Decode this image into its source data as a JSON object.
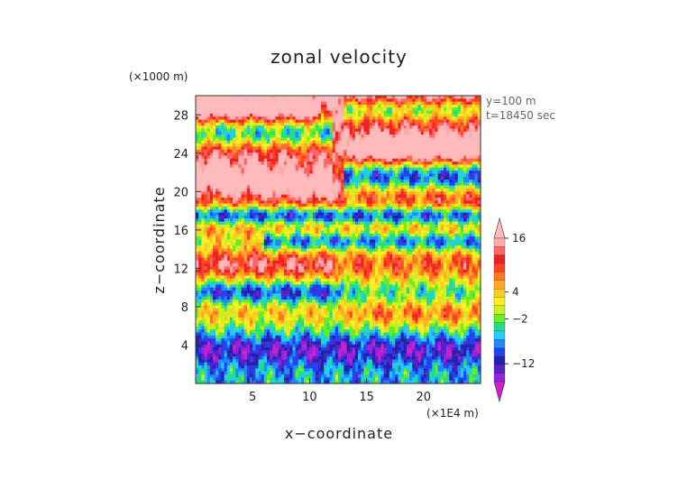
{
  "chart_data": {
    "type": "heatmap",
    "title": "zonal velocity",
    "xlabel": "x−coordinate",
    "ylabel": "z−coordinate",
    "x_unit": "(×1E4 m)",
    "y_unit": "(×1000 m)",
    "annotations": [
      "y=100 m",
      "t=18450 sec"
    ],
    "xlim": [
      0,
      25
    ],
    "ylim": [
      0,
      30
    ],
    "x_ticks": [
      5,
      10,
      15,
      20
    ],
    "y_ticks": [
      4,
      8,
      12,
      16,
      20,
      24,
      28
    ],
    "colorbar": {
      "tick_labels": [
        "16",
        "4",
        "−2",
        "−12"
      ],
      "tick_values": [
        16,
        4,
        -2,
        -12
      ],
      "levels": [
        -18,
        -16,
        -14,
        -12,
        -10,
        -8,
        -6,
        -4,
        -2,
        0,
        2,
        4,
        6,
        8,
        10,
        12,
        14,
        16,
        18
      ],
      "colors": [
        "#cc22cc",
        "#9922dd",
        "#5522cc",
        "#2222aa",
        "#2244ee",
        "#2288ff",
        "#22ccff",
        "#22dd88",
        "#66ee22",
        "#ccee22",
        "#ffee22",
        "#ffcc22",
        "#ffaa22",
        "#ff7722",
        "#ff4422",
        "#ee2222",
        "#ff6666",
        "#ffaaaa",
        "#ffbbbb"
      ]
    },
    "legend": "right-vertical-colorbar",
    "grid": false
  }
}
